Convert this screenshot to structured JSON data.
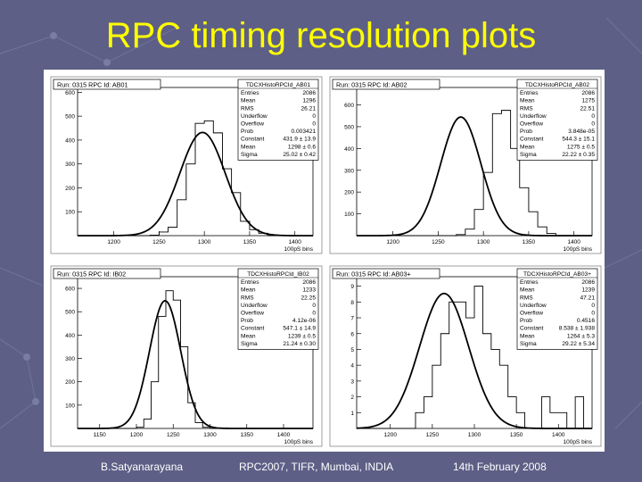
{
  "slide": {
    "title": "RPC timing resolution plots",
    "footer_left": "B.Satyanarayana",
    "footer_center": "RPC2007, TIFR, Mumbai, INDIA",
    "footer_right": "14th February 2008"
  },
  "colors": {
    "title": "#ffff00",
    "background": "#5d5f86",
    "footer": "#ffffff"
  },
  "chart_data": [
    {
      "type": "bar",
      "title": "Run: 0315   RPC Id: AB01",
      "stats_title": "TDCXHistoRPCId_AB01",
      "xlabel": "100pS bins",
      "xlim": [
        1160,
        1420
      ],
      "ylim": [
        0,
        620
      ],
      "x_ticks": [
        1200,
        1250,
        1300,
        1350,
        1400
      ],
      "y_ticks": [
        100,
        200,
        300,
        400,
        500,
        600
      ],
      "bin_edges": [
        1160,
        1170,
        1180,
        1190,
        1200,
        1210,
        1220,
        1230,
        1240,
        1250,
        1260,
        1270,
        1280,
        1290,
        1300,
        1310,
        1320,
        1330,
        1340,
        1350,
        1360,
        1370,
        1380,
        1390,
        1400,
        1410,
        1420
      ],
      "values": [
        0,
        0,
        0,
        0,
        0,
        0,
        0,
        0,
        2,
        15,
        35,
        150,
        300,
        470,
        480,
        430,
        280,
        180,
        60,
        25,
        10,
        0,
        0,
        0,
        0,
        0
      ],
      "fit": {
        "constant": 431.9,
        "mean": 1298,
        "sigma": 25.02
      },
      "stats": [
        [
          "Entries",
          "2086"
        ],
        [
          "Mean",
          "1296"
        ],
        [
          "RMS",
          "26.21"
        ],
        [
          "Underflow",
          "0"
        ],
        [
          "Overflow",
          "0"
        ],
        [
          "Prob",
          "0.003421"
        ],
        [
          "Constant",
          "431.9 ± 13.9"
        ],
        [
          "Mean",
          "1298 ± 0.6"
        ],
        [
          "Sigma",
          "25.02 ± 0.42"
        ]
      ]
    },
    {
      "type": "bar",
      "title": "Run: 0315   RPC Id: AB02",
      "stats_title": "TDCXHistoRPCId_AB02",
      "xlabel": "100pS bins",
      "xlim": [
        1160,
        1420
      ],
      "ylim": [
        0,
        680
      ],
      "x_ticks": [
        1200,
        1250,
        1300,
        1350,
        1400
      ],
      "y_ticks": [
        100,
        200,
        300,
        400,
        500,
        600
      ],
      "bin_edges": [
        1160,
        1170,
        1180,
        1190,
        1200,
        1210,
        1220,
        1230,
        1240,
        1250,
        1260,
        1270,
        1280,
        1290,
        1300,
        1310,
        1320,
        1330,
        1340,
        1350,
        1360,
        1370,
        1380,
        1390,
        1400,
        1410,
        1420
      ],
      "values": [
        0,
        0,
        0,
        0,
        0,
        0,
        0,
        0,
        0,
        0,
        0,
        5,
        30,
        120,
        290,
        560,
        575,
        400,
        220,
        110,
        40,
        10,
        0,
        0,
        0,
        0
      ],
      "fit": {
        "constant": 544.3,
        "mean": 1275,
        "sigma": 22.22
      },
      "stats": [
        [
          "Entries",
          "2086"
        ],
        [
          "Mean",
          "1275"
        ],
        [
          "RMS",
          "22.51"
        ],
        [
          "Underflow",
          "0"
        ],
        [
          "Overflow",
          "0"
        ],
        [
          "Prob",
          "3.848e-05"
        ],
        [
          "Constant",
          "544.3 ± 15.1"
        ],
        [
          "Mean",
          "1275 ± 0.5"
        ],
        [
          "Sigma",
          "22.22 ± 0.35"
        ]
      ]
    },
    {
      "type": "bar",
      "title": "Run: 0315   RPC Id: IB02",
      "stats_title": "TDCXHistoRPCId_IB02",
      "xlabel": "100pS bins",
      "xlim": [
        1120,
        1440
      ],
      "ylim": [
        0,
        650
      ],
      "x_ticks": [
        1150,
        1200,
        1250,
        1300,
        1350,
        1400
      ],
      "y_ticks": [
        100,
        200,
        300,
        400,
        500,
        600
      ],
      "bin_edges": [
        1120,
        1130,
        1140,
        1150,
        1160,
        1170,
        1180,
        1190,
        1200,
        1210,
        1220,
        1230,
        1240,
        1250,
        1260,
        1270,
        1280,
        1290,
        1300,
        1310,
        1320,
        1330,
        1340,
        1350,
        1360,
        1370,
        1380,
        1390,
        1400,
        1410,
        1420,
        1430,
        1440
      ],
      "values": [
        0,
        0,
        0,
        0,
        0,
        0,
        0,
        0,
        5,
        40,
        200,
        480,
        590,
        550,
        350,
        110,
        25,
        5,
        0,
        0,
        0,
        0,
        0,
        0,
        0,
        0,
        0,
        0,
        0,
        0,
        0,
        0
      ],
      "fit": {
        "constant": 547.1,
        "mean": 1239,
        "sigma": 21.24
      },
      "stats": [
        [
          "Entries",
          "2086"
        ],
        [
          "Mean",
          "1233"
        ],
        [
          "RMS",
          "22.25"
        ],
        [
          "Underflow",
          "0"
        ],
        [
          "Overflow",
          "0"
        ],
        [
          "Prob",
          "4.12e-06"
        ],
        [
          "Constant",
          "547.1 ± 14.9"
        ],
        [
          "Mean",
          "1239 ± 0.5"
        ],
        [
          "Sigma",
          "21.24 ± 0.30"
        ]
      ]
    },
    {
      "type": "bar",
      "title": "Run: 0315   RPC Id: AB03+",
      "stats_title": "TDCXHistoRPCId_AB03+",
      "xlabel": "100pS bins",
      "xlim": [
        1160,
        1440
      ],
      "ylim": [
        0,
        9.6
      ],
      "x_ticks": [
        1200,
        1250,
        1300,
        1350,
        1400
      ],
      "y_ticks": [
        1,
        2,
        3,
        4,
        5,
        6,
        7,
        8,
        9
      ],
      "bin_edges": [
        1160,
        1170,
        1180,
        1190,
        1200,
        1210,
        1220,
        1230,
        1240,
        1250,
        1260,
        1270,
        1280,
        1290,
        1300,
        1310,
        1320,
        1330,
        1340,
        1350,
        1360,
        1370,
        1380,
        1390,
        1400,
        1410,
        1420,
        1430,
        1440
      ],
      "values": [
        0,
        0,
        0,
        0,
        0,
        0,
        0,
        1,
        2,
        4,
        6,
        8,
        8,
        7,
        9,
        6,
        5,
        4,
        2,
        1,
        0,
        0,
        2,
        1,
        1,
        0,
        2,
        0
      ],
      "fit": {
        "constant": 8.538,
        "mean": 1264,
        "sigma": 29.22
      },
      "stats": [
        [
          "Entries",
          "2086"
        ],
        [
          "Mean",
          "1239"
        ],
        [
          "RMS",
          "47.21"
        ],
        [
          "Underflow",
          "0"
        ],
        [
          "Overflow",
          "0"
        ],
        [
          "Prob",
          "0.4516"
        ],
        [
          "Constant",
          "8.538 ± 1.938"
        ],
        [
          "Mean",
          "1264 ± 5.3"
        ],
        [
          "Sigma",
          "29.22 ± 5.34"
        ]
      ]
    }
  ]
}
